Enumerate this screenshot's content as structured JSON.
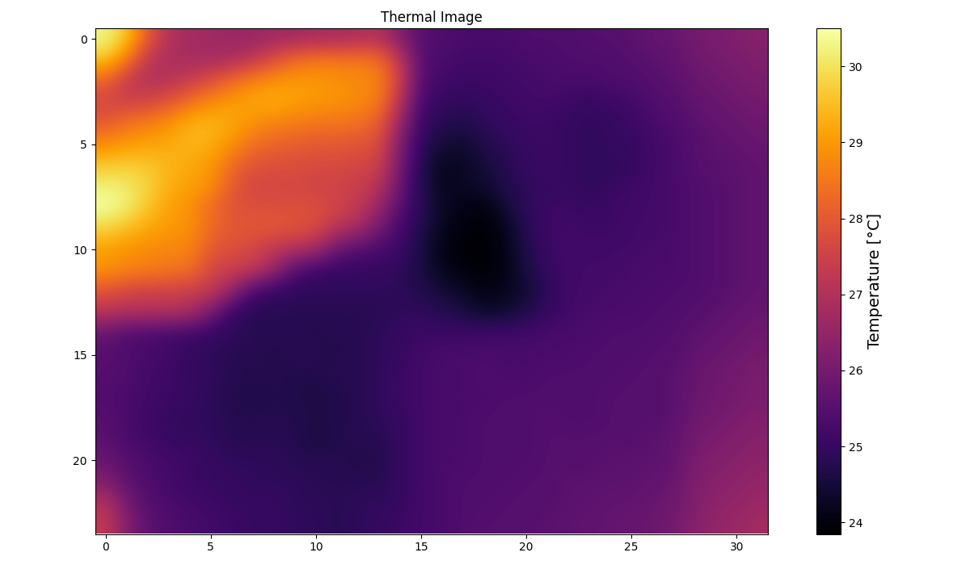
{
  "chart_data": {
    "type": "heatmap",
    "title": "Thermal Image",
    "color": "inferno",
    "xlim": [
      -0.5,
      31.5
    ],
    "ylim": [
      23.5,
      -0.5
    ],
    "xticks": [
      0,
      5,
      10,
      15,
      20,
      25,
      30
    ],
    "yticks": [
      0,
      5,
      10,
      15,
      20
    ],
    "colorbar": {
      "label": "Temperature [°C]",
      "range": [
        23.85,
        30.5
      ],
      "ticks": [
        24,
        25,
        26,
        27,
        28,
        29,
        30
      ]
    },
    "cells": [
      [
        30.3,
        29.6,
        28.0,
        27.0,
        26.8,
        26.7,
        26.6,
        26.6,
        26.7,
        26.7,
        26.8,
        26.8,
        26.9,
        27.0,
        26.2,
        25.5,
        25.4,
        25.3,
        25.3,
        25.3,
        25.4,
        25.4,
        25.4,
        25.5,
        25.5,
        25.6,
        25.7,
        25.8,
        26.0,
        26.1,
        26.2,
        26.3
      ],
      [
        29.6,
        28.6,
        27.2,
        26.9,
        26.8,
        26.8,
        26.9,
        27.2,
        27.8,
        28.3,
        28.5,
        28.5,
        28.5,
        28.4,
        27.2,
        25.5,
        25.3,
        25.2,
        25.2,
        25.2,
        25.3,
        25.3,
        25.4,
        25.4,
        25.4,
        25.5,
        25.6,
        25.7,
        25.9,
        26.0,
        26.1,
        26.2
      ],
      [
        28.2,
        27.3,
        27.0,
        27.1,
        27.4,
        27.8,
        28.3,
        28.7,
        28.9,
        29.0,
        29.0,
        28.9,
        28.8,
        28.7,
        27.5,
        25.4,
        25.2,
        25.1,
        25.1,
        25.2,
        25.2,
        25.3,
        25.3,
        25.3,
        25.4,
        25.4,
        25.5,
        25.6,
        25.8,
        25.9,
        26.0,
        26.1
      ],
      [
        27.6,
        27.5,
        27.6,
        27.9,
        28.4,
        28.8,
        29.0,
        29.2,
        29.3,
        29.1,
        29.0,
        28.9,
        28.8,
        28.6,
        27.1,
        25.2,
        25.0,
        24.9,
        25.0,
        25.1,
        25.2,
        25.2,
        25.1,
        25.0,
        25.1,
        25.2,
        25.4,
        25.5,
        25.7,
        25.8,
        25.9,
        26.0
      ],
      [
        28.0,
        28.4,
        28.6,
        28.9,
        29.3,
        29.4,
        29.2,
        28.9,
        28.7,
        28.6,
        28.5,
        28.5,
        28.4,
        28.1,
        26.6,
        25.0,
        24.8,
        24.7,
        24.9,
        25.0,
        25.1,
        25.1,
        25.0,
        24.9,
        25.0,
        25.1,
        25.3,
        25.4,
        25.6,
        25.7,
        25.8,
        25.9
      ],
      [
        28.8,
        29.0,
        29.1,
        29.2,
        29.4,
        29.3,
        28.9,
        28.4,
        28.2,
        28.1,
        28.0,
        28.0,
        27.9,
        27.8,
        26.1,
        24.9,
        24.5,
        24.4,
        24.7,
        24.9,
        25.0,
        25.1,
        25.0,
        24.9,
        25.0,
        25.0,
        25.2,
        25.3,
        25.5,
        25.6,
        25.7,
        25.8
      ],
      [
        29.6,
        29.7,
        29.6,
        29.4,
        29.2,
        29.0,
        28.3,
        27.9,
        27.8,
        27.8,
        27.7,
        27.7,
        27.6,
        27.5,
        26.0,
        24.7,
        24.2,
        24.3,
        24.5,
        24.8,
        25.0,
        25.1,
        25.0,
        24.9,
        24.9,
        25.0,
        25.2,
        25.3,
        25.5,
        25.6,
        25.6,
        25.7
      ],
      [
        30.2,
        30.1,
        29.8,
        29.3,
        29.1,
        28.9,
        28.0,
        27.6,
        27.6,
        27.6,
        27.5,
        27.5,
        27.4,
        27.1,
        25.8,
        24.7,
        24.2,
        24.3,
        24.4,
        24.7,
        24.9,
        25.0,
        25.0,
        24.9,
        25.0,
        25.1,
        25.2,
        25.3,
        25.4,
        25.5,
        25.6,
        25.7
      ],
      [
        30.5,
        30.2,
        29.6,
        29.1,
        28.9,
        28.3,
        27.9,
        27.8,
        27.8,
        27.8,
        27.8,
        27.6,
        27.3,
        26.6,
        25.5,
        24.8,
        24.3,
        24.1,
        24.0,
        24.5,
        24.9,
        25.1,
        25.1,
        25.0,
        25.1,
        25.2,
        25.2,
        25.3,
        25.4,
        25.5,
        25.6,
        25.7
      ],
      [
        29.8,
        29.5,
        29.2,
        29.0,
        28.9,
        28.3,
        28.0,
        28.0,
        28.0,
        27.9,
        27.7,
        27.1,
        26.8,
        26.0,
        25.2,
        24.7,
        24.2,
        24.0,
        23.9,
        24.2,
        24.8,
        25.1,
        25.2,
        25.1,
        25.1,
        25.2,
        25.2,
        25.3,
        25.4,
        25.5,
        25.6,
        25.7
      ],
      [
        29.1,
        28.9,
        28.8,
        28.7,
        28.7,
        28.0,
        27.8,
        27.6,
        27.2,
        27.0,
        26.8,
        25.8,
        25.5,
        25.3,
        25.1,
        24.6,
        24.1,
        23.9,
        23.9,
        24.1,
        24.7,
        25.1,
        25.2,
        25.2,
        25.2,
        25.2,
        25.3,
        25.3,
        25.4,
        25.5,
        25.6,
        25.7
      ],
      [
        28.9,
        28.7,
        28.6,
        28.5,
        28.4,
        27.6,
        27.4,
        27.3,
        26.6,
        25.4,
        25.1,
        25.0,
        25.0,
        25.0,
        24.9,
        24.6,
        24.2,
        24.0,
        23.9,
        24.1,
        24.6,
        25.0,
        25.2,
        25.2,
        25.2,
        25.3,
        25.3,
        25.3,
        25.4,
        25.5,
        25.6,
        25.7
      ],
      [
        27.9,
        27.6,
        27.5,
        27.5,
        27.4,
        27.3,
        26.5,
        25.2,
        25.0,
        24.9,
        24.9,
        24.9,
        24.9,
        24.9,
        24.9,
        24.7,
        24.5,
        24.3,
        24.1,
        24.2,
        24.4,
        24.9,
        25.2,
        25.2,
        25.3,
        25.3,
        25.3,
        25.4,
        25.4,
        25.5,
        25.6,
        25.7
      ],
      [
        27.1,
        27.0,
        27.0,
        27.0,
        26.9,
        26.0,
        25.0,
        24.8,
        24.8,
        24.8,
        24.8,
        24.8,
        24.8,
        24.8,
        24.9,
        24.9,
        24.8,
        24.6,
        24.3,
        24.4,
        24.7,
        25.0,
        25.2,
        25.3,
        25.3,
        25.3,
        25.4,
        25.4,
        25.5,
        25.6,
        25.7,
        25.8
      ],
      [
        25.8,
        25.4,
        25.3,
        25.2,
        25.1,
        25.0,
        24.9,
        24.8,
        24.8,
        24.8,
        24.7,
        24.8,
        24.8,
        24.9,
        25.0,
        25.1,
        25.1,
        25.1,
        25.2,
        25.2,
        25.2,
        25.3,
        25.3,
        25.3,
        25.4,
        25.4,
        25.4,
        25.5,
        25.6,
        25.7,
        25.8,
        25.9
      ],
      [
        25.5,
        25.4,
        25.3,
        25.2,
        25.0,
        24.9,
        24.8,
        24.8,
        24.7,
        24.8,
        24.8,
        24.7,
        24.8,
        24.9,
        25.0,
        25.2,
        25.3,
        25.3,
        25.3,
        25.3,
        25.3,
        25.3,
        25.3,
        25.4,
        25.4,
        25.4,
        25.5,
        25.5,
        25.7,
        25.8,
        25.9,
        26.0
      ],
      [
        25.5,
        25.4,
        25.2,
        25.1,
        25.0,
        24.9,
        24.8,
        24.7,
        24.8,
        24.7,
        24.7,
        24.8,
        24.8,
        24.9,
        25.1,
        25.2,
        25.3,
        25.3,
        25.4,
        25.3,
        25.3,
        25.4,
        25.4,
        25.4,
        25.4,
        25.5,
        25.5,
        25.6,
        25.8,
        25.9,
        26.0,
        26.1
      ],
      [
        25.4,
        25.3,
        25.2,
        25.1,
        25.0,
        24.9,
        24.7,
        24.7,
        24.7,
        24.7,
        24.6,
        24.7,
        24.8,
        24.9,
        25.1,
        25.2,
        25.3,
        25.3,
        25.3,
        25.4,
        25.4,
        25.4,
        25.4,
        25.4,
        25.5,
        25.5,
        25.5,
        25.6,
        25.8,
        25.9,
        26.0,
        26.1
      ],
      [
        25.5,
        25.3,
        25.1,
        25.0,
        24.9,
        24.9,
        24.8,
        24.7,
        24.8,
        24.7,
        24.7,
        24.7,
        24.8,
        24.9,
        25.0,
        25.2,
        25.3,
        25.3,
        25.4,
        25.4,
        25.4,
        25.5,
        25.4,
        25.4,
        25.5,
        25.5,
        25.5,
        25.6,
        25.9,
        26.0,
        26.1,
        26.2
      ],
      [
        25.6,
        25.3,
        25.2,
        25.0,
        25.0,
        24.9,
        24.8,
        24.8,
        24.8,
        24.8,
        24.5,
        24.7,
        24.8,
        24.8,
        25.0,
        25.2,
        25.3,
        25.3,
        25.4,
        25.4,
        25.4,
        25.5,
        25.5,
        25.5,
        25.5,
        25.5,
        25.6,
        25.7,
        26.0,
        26.1,
        26.2,
        26.3
      ],
      [
        25.8,
        25.5,
        25.3,
        25.2,
        25.1,
        25.0,
        24.9,
        24.9,
        24.9,
        24.8,
        24.8,
        24.8,
        24.7,
        24.7,
        25.0,
        25.2,
        25.3,
        25.3,
        25.4,
        25.4,
        25.4,
        25.5,
        25.5,
        25.5,
        25.6,
        25.6,
        25.6,
        25.7,
        26.1,
        26.2,
        26.3,
        26.4
      ],
      [
        26.2,
        25.6,
        25.4,
        25.2,
        25.1,
        25.0,
        25.0,
        24.9,
        24.9,
        24.9,
        24.8,
        24.8,
        24.8,
        24.8,
        25.0,
        25.2,
        25.3,
        25.4,
        25.4,
        25.4,
        25.5,
        25.5,
        25.6,
        25.6,
        25.6,
        25.6,
        25.7,
        25.8,
        26.2,
        26.3,
        26.4,
        26.5
      ],
      [
        27.0,
        26.0,
        25.5,
        25.3,
        25.2,
        25.1,
        25.0,
        25.0,
        25.0,
        24.9,
        24.9,
        24.8,
        24.9,
        24.9,
        25.0,
        25.2,
        25.3,
        25.4,
        25.4,
        25.5,
        25.5,
        25.5,
        25.6,
        25.6,
        25.7,
        25.7,
        25.8,
        25.9,
        26.2,
        26.4,
        26.5,
        26.6
      ],
      [
        27.3,
        26.2,
        25.6,
        25.4,
        25.3,
        25.2,
        25.1,
        25.0,
        25.0,
        24.9,
        24.9,
        24.8,
        24.9,
        25.0,
        25.1,
        25.2,
        25.3,
        25.4,
        25.5,
        25.5,
        25.5,
        25.6,
        25.6,
        25.7,
        25.7,
        25.8,
        25.8,
        26.0,
        26.3,
        26.5,
        26.6,
        26.8
      ]
    ]
  }
}
